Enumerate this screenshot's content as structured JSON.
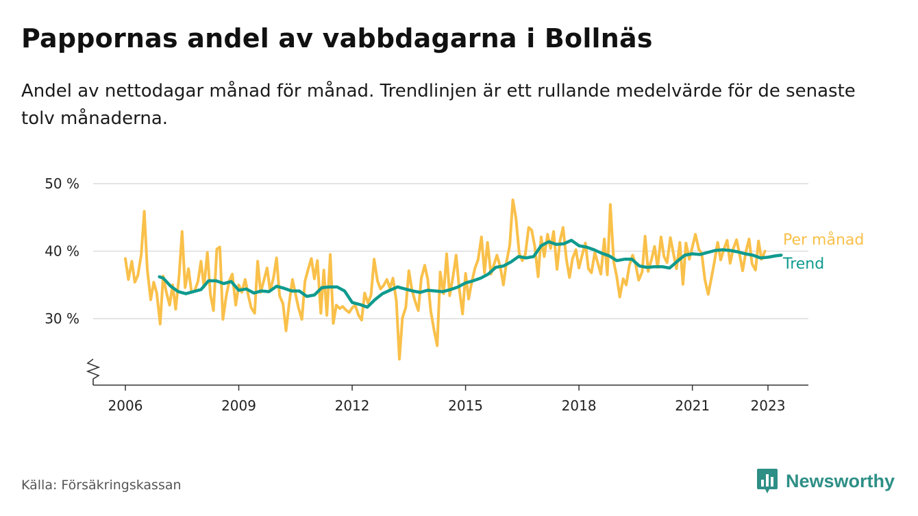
{
  "header": {
    "title": "Pappornas andel av vabbdagarna i Bollnäs",
    "subtitle": "Andel av nettodagar månad för månad. Trendlinjen är ett rullande medelvärde för de senaste tolv månaderna."
  },
  "footer": {
    "source": "Källa: Försäkringskassan",
    "brand": "Newsworthy",
    "brand_icon": "bar-chart-icon"
  },
  "colors": {
    "monthly": "#f9c04a",
    "trend": "#0f9a8e",
    "grid": "#dcdcdc",
    "axis": "#333333"
  },
  "chart_data": {
    "type": "line",
    "x_unit": "år (decimal)",
    "xlim": [
      2005.8,
      2024.0
    ],
    "ylim": [
      20,
      50
    ],
    "y_break": true,
    "grid": "horizontal",
    "legend": "direct labels at right end of lines",
    "x_ticks": [
      {
        "value": 2006,
        "label": "2006"
      },
      {
        "value": 2009,
        "label": "2009"
      },
      {
        "value": 2012,
        "label": "2012"
      },
      {
        "value": 2015,
        "label": "2015"
      },
      {
        "value": 2018,
        "label": "2018"
      },
      {
        "value": 2021,
        "label": "2021"
      },
      {
        "value": 2023,
        "label": "2023"
      }
    ],
    "y_ticks": [
      {
        "value": 30,
        "label": "30 %"
      },
      {
        "value": 40,
        "label": "40 %"
      },
      {
        "value": 50,
        "label": "50 %"
      }
    ],
    "series": [
      {
        "name": "Per månad",
        "points": [
          [
            2006.0,
            38.9
          ],
          [
            2006.08,
            35.8
          ],
          [
            2006.17,
            38.5
          ],
          [
            2006.25,
            35.4
          ],
          [
            2006.33,
            36.4
          ],
          [
            2006.42,
            39.5
          ],
          [
            2006.5,
            45.9
          ],
          [
            2006.58,
            37.3
          ],
          [
            2006.67,
            32.8
          ],
          [
            2006.75,
            35.4
          ],
          [
            2006.83,
            33.8
          ],
          [
            2006.92,
            29.2
          ],
          [
            2007.0,
            36.3
          ],
          [
            2007.08,
            34.0
          ],
          [
            2007.17,
            32.0
          ],
          [
            2007.25,
            35.0
          ],
          [
            2007.33,
            31.4
          ],
          [
            2007.42,
            36.3
          ],
          [
            2007.5,
            42.9
          ],
          [
            2007.58,
            34.6
          ],
          [
            2007.67,
            37.4
          ],
          [
            2007.75,
            33.9
          ],
          [
            2007.83,
            34.1
          ],
          [
            2007.92,
            35.5
          ],
          [
            2008.0,
            38.5
          ],
          [
            2008.08,
            34.7
          ],
          [
            2008.17,
            39.8
          ],
          [
            2008.25,
            33.6
          ],
          [
            2008.33,
            31.2
          ],
          [
            2008.42,
            40.3
          ],
          [
            2008.5,
            40.6
          ],
          [
            2008.58,
            29.9
          ],
          [
            2008.67,
            33.4
          ],
          [
            2008.75,
            35.6
          ],
          [
            2008.83,
            36.6
          ],
          [
            2008.92,
            32.0
          ],
          [
            2009.0,
            35.0
          ],
          [
            2009.08,
            33.9
          ],
          [
            2009.17,
            35.8
          ],
          [
            2009.25,
            33.5
          ],
          [
            2009.33,
            31.6
          ],
          [
            2009.42,
            30.8
          ],
          [
            2009.5,
            38.5
          ],
          [
            2009.58,
            33.9
          ],
          [
            2009.67,
            35.8
          ],
          [
            2009.75,
            37.5
          ],
          [
            2009.83,
            34.1
          ],
          [
            2009.92,
            36.1
          ],
          [
            2010.0,
            39.0
          ],
          [
            2010.08,
            33.4
          ],
          [
            2010.17,
            32.2
          ],
          [
            2010.25,
            28.2
          ],
          [
            2010.33,
            32.1
          ],
          [
            2010.42,
            35.8
          ],
          [
            2010.5,
            33.7
          ],
          [
            2010.58,
            31.6
          ],
          [
            2010.67,
            29.9
          ],
          [
            2010.75,
            35.5
          ],
          [
            2010.83,
            37.2
          ],
          [
            2010.92,
            38.9
          ],
          [
            2011.0,
            35.9
          ],
          [
            2011.08,
            38.6
          ],
          [
            2011.17,
            30.8
          ],
          [
            2011.25,
            37.2
          ],
          [
            2011.33,
            30.5
          ],
          [
            2011.42,
            39.5
          ],
          [
            2011.5,
            29.3
          ],
          [
            2011.58,
            32.0
          ],
          [
            2011.67,
            31.5
          ],
          [
            2011.75,
            31.8
          ],
          [
            2011.83,
            31.3
          ],
          [
            2011.92,
            30.9
          ],
          [
            2012.0,
            31.6
          ],
          [
            2012.08,
            32.0
          ],
          [
            2012.17,
            30.5
          ],
          [
            2012.25,
            29.8
          ],
          [
            2012.33,
            33.8
          ],
          [
            2012.42,
            32.3
          ],
          [
            2012.5,
            33.5
          ],
          [
            2012.58,
            38.8
          ],
          [
            2012.67,
            35.6
          ],
          [
            2012.75,
            34.4
          ],
          [
            2012.83,
            34.9
          ],
          [
            2012.92,
            35.8
          ],
          [
            2013.0,
            34.5
          ],
          [
            2013.08,
            36.0
          ],
          [
            2013.17,
            32.6
          ],
          [
            2013.25,
            24.0
          ],
          [
            2013.33,
            30.1
          ],
          [
            2013.42,
            31.7
          ],
          [
            2013.5,
            37.1
          ],
          [
            2013.58,
            34.3
          ],
          [
            2013.67,
            32.5
          ],
          [
            2013.75,
            31.2
          ],
          [
            2013.83,
            36.0
          ],
          [
            2013.92,
            37.9
          ],
          [
            2014.0,
            35.8
          ],
          [
            2014.08,
            31.1
          ],
          [
            2014.17,
            28.2
          ],
          [
            2014.25,
            26.0
          ],
          [
            2014.33,
            36.9
          ],
          [
            2014.42,
            33.7
          ],
          [
            2014.5,
            39.6
          ],
          [
            2014.58,
            33.4
          ],
          [
            2014.67,
            36.3
          ],
          [
            2014.75,
            39.4
          ],
          [
            2014.83,
            34.6
          ],
          [
            2014.92,
            30.7
          ],
          [
            2015.0,
            36.7
          ],
          [
            2015.08,
            32.9
          ],
          [
            2015.17,
            35.6
          ],
          [
            2015.25,
            37.5
          ],
          [
            2015.33,
            38.7
          ],
          [
            2015.42,
            42.1
          ],
          [
            2015.5,
            36.8
          ],
          [
            2015.58,
            41.3
          ],
          [
            2015.67,
            36.6
          ],
          [
            2015.75,
            38.0
          ],
          [
            2015.83,
            39.4
          ],
          [
            2015.92,
            37.6
          ],
          [
            2016.0,
            35.0
          ],
          [
            2016.08,
            38.3
          ],
          [
            2016.17,
            40.9
          ],
          [
            2016.25,
            47.6
          ],
          [
            2016.33,
            45.0
          ],
          [
            2016.42,
            39.7
          ],
          [
            2016.5,
            38.6
          ],
          [
            2016.58,
            39.5
          ],
          [
            2016.67,
            43.5
          ],
          [
            2016.75,
            43.1
          ],
          [
            2016.83,
            40.7
          ],
          [
            2016.92,
            36.2
          ],
          [
            2017.0,
            42.1
          ],
          [
            2017.08,
            39.2
          ],
          [
            2017.17,
            42.5
          ],
          [
            2017.25,
            40.4
          ],
          [
            2017.33,
            42.9
          ],
          [
            2017.42,
            37.3
          ],
          [
            2017.5,
            41.6
          ],
          [
            2017.58,
            43.5
          ],
          [
            2017.67,
            38.7
          ],
          [
            2017.75,
            36.1
          ],
          [
            2017.83,
            38.9
          ],
          [
            2017.92,
            40.2
          ],
          [
            2018.0,
            37.5
          ],
          [
            2018.08,
            39.3
          ],
          [
            2018.17,
            41.2
          ],
          [
            2018.25,
            37.4
          ],
          [
            2018.33,
            36.8
          ],
          [
            2018.42,
            39.8
          ],
          [
            2018.5,
            38.2
          ],
          [
            2018.58,
            36.6
          ],
          [
            2018.67,
            41.8
          ],
          [
            2018.75,
            36.5
          ],
          [
            2018.83,
            46.9
          ],
          [
            2018.92,
            38.4
          ],
          [
            2019.0,
            36.2
          ],
          [
            2019.08,
            33.2
          ],
          [
            2019.17,
            35.9
          ],
          [
            2019.25,
            35.0
          ],
          [
            2019.33,
            37.8
          ],
          [
            2019.42,
            39.4
          ],
          [
            2019.5,
            38.0
          ],
          [
            2019.58,
            35.7
          ],
          [
            2019.67,
            36.9
          ],
          [
            2019.75,
            42.2
          ],
          [
            2019.83,
            37.0
          ],
          [
            2019.92,
            38.8
          ],
          [
            2020.0,
            40.7
          ],
          [
            2020.08,
            37.6
          ],
          [
            2020.17,
            42.1
          ],
          [
            2020.25,
            39.2
          ],
          [
            2020.33,
            38.3
          ],
          [
            2020.42,
            42.0
          ],
          [
            2020.5,
            39.6
          ],
          [
            2020.58,
            37.4
          ],
          [
            2020.67,
            41.3
          ],
          [
            2020.75,
            35.1
          ],
          [
            2020.83,
            41.2
          ],
          [
            2020.92,
            38.8
          ],
          [
            2021.0,
            40.6
          ],
          [
            2021.08,
            42.5
          ],
          [
            2021.17,
            40.3
          ],
          [
            2021.25,
            39.6
          ],
          [
            2021.33,
            35.8
          ],
          [
            2021.42,
            33.6
          ],
          [
            2021.5,
            35.9
          ],
          [
            2021.58,
            38.3
          ],
          [
            2021.67,
            41.3
          ],
          [
            2021.75,
            38.7
          ],
          [
            2021.83,
            40.2
          ],
          [
            2021.92,
            41.6
          ],
          [
            2022.0,
            38.2
          ],
          [
            2022.08,
            40.3
          ],
          [
            2022.17,
            41.7
          ],
          [
            2022.25,
            39.5
          ],
          [
            2022.33,
            37.1
          ],
          [
            2022.42,
            40.0
          ],
          [
            2022.5,
            41.8
          ],
          [
            2022.58,
            38.1
          ],
          [
            2022.67,
            37.2
          ],
          [
            2022.75,
            41.5
          ],
          [
            2022.83,
            38.8
          ],
          [
            2022.92,
            40.0
          ]
        ]
      },
      {
        "name": "Trend",
        "points": [
          [
            2006.9,
            36.2
          ],
          [
            2007.0,
            36.0
          ],
          [
            2007.2,
            34.8
          ],
          [
            2007.4,
            34.0
          ],
          [
            2007.6,
            33.7
          ],
          [
            2007.8,
            34.0
          ],
          [
            2008.0,
            34.3
          ],
          [
            2008.2,
            35.6
          ],
          [
            2008.4,
            35.6
          ],
          [
            2008.6,
            35.2
          ],
          [
            2008.8,
            35.5
          ],
          [
            2009.0,
            34.2
          ],
          [
            2009.2,
            34.4
          ],
          [
            2009.4,
            33.8
          ],
          [
            2009.6,
            34.1
          ],
          [
            2009.8,
            34.0
          ],
          [
            2010.0,
            34.8
          ],
          [
            2010.2,
            34.5
          ],
          [
            2010.4,
            34.1
          ],
          [
            2010.6,
            34.1
          ],
          [
            2010.8,
            33.3
          ],
          [
            2011.0,
            33.5
          ],
          [
            2011.2,
            34.6
          ],
          [
            2011.4,
            34.7
          ],
          [
            2011.6,
            34.7
          ],
          [
            2011.8,
            34.1
          ],
          [
            2012.0,
            32.4
          ],
          [
            2012.2,
            32.1
          ],
          [
            2012.4,
            31.7
          ],
          [
            2012.6,
            32.8
          ],
          [
            2012.8,
            33.7
          ],
          [
            2013.0,
            34.2
          ],
          [
            2013.2,
            34.7
          ],
          [
            2013.4,
            34.4
          ],
          [
            2013.6,
            34.1
          ],
          [
            2013.8,
            33.9
          ],
          [
            2014.0,
            34.2
          ],
          [
            2014.2,
            34.1
          ],
          [
            2014.4,
            34.0
          ],
          [
            2014.6,
            34.3
          ],
          [
            2014.8,
            34.7
          ],
          [
            2015.0,
            35.3
          ],
          [
            2015.2,
            35.6
          ],
          [
            2015.4,
            36.0
          ],
          [
            2015.6,
            36.6
          ],
          [
            2015.8,
            37.6
          ],
          [
            2016.0,
            37.8
          ],
          [
            2016.2,
            38.4
          ],
          [
            2016.4,
            39.2
          ],
          [
            2016.6,
            39.0
          ],
          [
            2016.8,
            39.2
          ],
          [
            2017.0,
            40.8
          ],
          [
            2017.2,
            41.4
          ],
          [
            2017.4,
            41.0
          ],
          [
            2017.6,
            41.1
          ],
          [
            2017.8,
            41.6
          ],
          [
            2018.0,
            40.8
          ],
          [
            2018.2,
            40.6
          ],
          [
            2018.4,
            40.2
          ],
          [
            2018.6,
            39.7
          ],
          [
            2018.8,
            39.3
          ],
          [
            2019.0,
            38.6
          ],
          [
            2019.2,
            38.8
          ],
          [
            2019.4,
            38.8
          ],
          [
            2019.6,
            37.8
          ],
          [
            2019.8,
            37.6
          ],
          [
            2020.0,
            37.7
          ],
          [
            2020.2,
            37.7
          ],
          [
            2020.4,
            37.5
          ],
          [
            2020.6,
            38.5
          ],
          [
            2020.8,
            39.4
          ],
          [
            2021.0,
            39.6
          ],
          [
            2021.2,
            39.5
          ],
          [
            2021.4,
            39.8
          ],
          [
            2021.6,
            40.1
          ],
          [
            2021.8,
            40.2
          ],
          [
            2022.0,
            40.1
          ],
          [
            2022.2,
            39.9
          ],
          [
            2022.4,
            39.6
          ],
          [
            2022.6,
            39.4
          ],
          [
            2022.8,
            39.0
          ],
          [
            2023.0,
            39.1
          ],
          [
            2023.2,
            39.3
          ],
          [
            2023.35,
            39.4
          ]
        ]
      }
    ]
  }
}
